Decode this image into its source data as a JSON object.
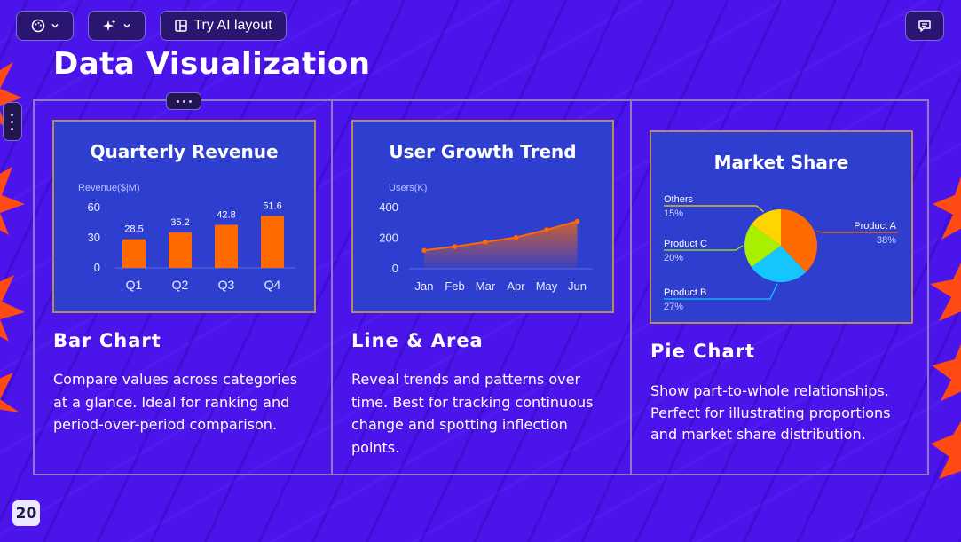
{
  "toolbar": {
    "theme_icon": "palette-icon",
    "ai_icon": "sparkles-icon",
    "layout_icon": "layout-icon",
    "try_ai_layout_label": "Try AI layout",
    "comment_icon": "comment-icon"
  },
  "slide": {
    "title": "Data Visualization",
    "page_number": "20"
  },
  "columns": [
    {
      "heading": "Bar Chart",
      "description": "Compare values across categories at a glance. Ideal for ranking and period-over-period comparison."
    },
    {
      "heading": "Line & Area",
      "description": "Reveal trends and patterns over time. Best for tracking continuous change and spotting inflection points."
    },
    {
      "heading": "Pie Chart",
      "description": "Show part-to-whole relationships. Perfect for illustrating proportions and market share distribution."
    }
  ],
  "colors": {
    "background": "#4b14ea",
    "card": "#2e3fcf",
    "bar": "#ff6a00",
    "line": "#ff6a00",
    "pie_a": "#ff6a00",
    "pie_b": "#16c6ff",
    "pie_c": "#a8f000",
    "pie_others": "#ffd400",
    "star": "#ff4a14"
  },
  "chart_data": [
    {
      "type": "bar",
      "title": "Quarterly Revenue",
      "ylabel": "Revenue($|M)",
      "categories": [
        "Q1",
        "Q2",
        "Q3",
        "Q4"
      ],
      "values": [
        28.5,
        35.2,
        42.8,
        51.6
      ],
      "yticks": [
        "60",
        "30",
        "0"
      ],
      "ylim": [
        0,
        60
      ],
      "grid": false
    },
    {
      "type": "area",
      "title": "User Growth Trend",
      "ylabel": "Users(K)",
      "categories": [
        "Jan",
        "Feb",
        "Mar",
        "Apr",
        "May",
        "Jun"
      ],
      "values": [
        120,
        145,
        175,
        205,
        255,
        310
      ],
      "yticks": [
        "400",
        "200",
        "0"
      ],
      "ylim": [
        0,
        400
      ],
      "grid": false
    },
    {
      "type": "pie",
      "title": "Market Share",
      "slices": [
        {
          "label": "Product A",
          "pct_label": "38%",
          "value": 38
        },
        {
          "label": "Product B",
          "pct_label": "27%",
          "value": 27
        },
        {
          "label": "Product C",
          "pct_label": "20%",
          "value": 20
        },
        {
          "label": "Others",
          "pct_label": "15%",
          "value": 15
        }
      ]
    }
  ]
}
